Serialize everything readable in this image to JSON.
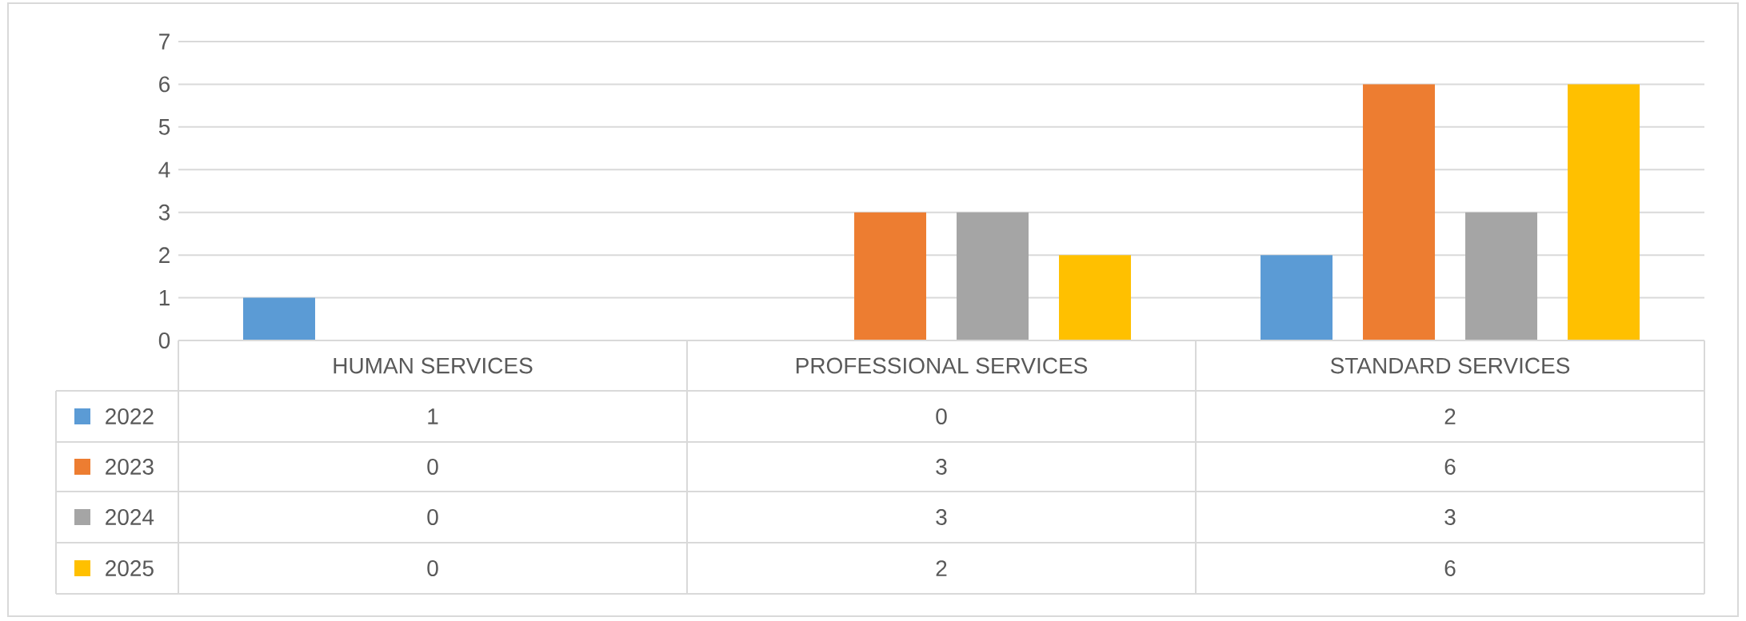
{
  "chart_data": {
    "type": "bar",
    "categories": [
      "HUMAN SERVICES",
      "PROFESSIONAL SERVICES",
      "STANDARD SERVICES"
    ],
    "series": [
      {
        "name": "2022",
        "color": "#5b9bd5",
        "values": [
          1,
          0,
          2
        ]
      },
      {
        "name": "2023",
        "color": "#ed7d31",
        "values": [
          0,
          3,
          6
        ]
      },
      {
        "name": "2024",
        "color": "#a5a5a5",
        "values": [
          0,
          3,
          3
        ]
      },
      {
        "name": "2025",
        "color": "#ffc000",
        "values": [
          0,
          2,
          6
        ]
      }
    ],
    "ylim": [
      0,
      7
    ],
    "yticks": [
      0,
      1,
      2,
      3,
      4,
      5,
      6,
      7
    ],
    "grid": "y",
    "legend": "bottom",
    "data_labels": true
  }
}
